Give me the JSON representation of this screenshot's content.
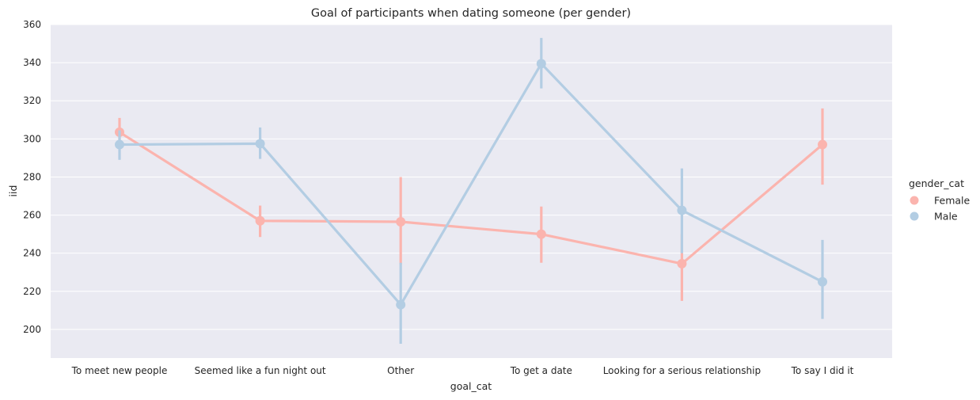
{
  "chart_data": {
    "type": "line",
    "title": "Goal of participants when dating someone (per gender)",
    "xlabel": "goal_cat",
    "ylabel": "iid",
    "categories": [
      "To meet new people",
      "Seemed like a fun night out",
      "Other",
      "To get a date",
      "Looking for a serious relationship",
      "To say I did it"
    ],
    "ylim": [
      185,
      360
    ],
    "yticks": [
      200,
      220,
      240,
      260,
      280,
      300,
      320,
      340,
      360
    ],
    "grid": true,
    "legend": {
      "title": "gender_cat",
      "placement": "right"
    },
    "series": [
      {
        "name": "Female",
        "color": "#fbb4ae",
        "values": [
          303.5,
          257,
          256.5,
          250,
          234.5,
          297
        ],
        "ci_low": [
          297,
          248.5,
          234,
          235,
          215,
          276
        ],
        "ci_high": [
          311,
          265,
          280,
          264.5,
          250,
          316
        ]
      },
      {
        "name": "Male",
        "color": "#b3cde3",
        "values": [
          297,
          297.5,
          213,
          339.5,
          262.5,
          225
        ],
        "ci_low": [
          289,
          289.5,
          192.5,
          326.5,
          240,
          205.5
        ],
        "ci_high": [
          304.5,
          306,
          235,
          353,
          284.5,
          247
        ]
      }
    ]
  }
}
